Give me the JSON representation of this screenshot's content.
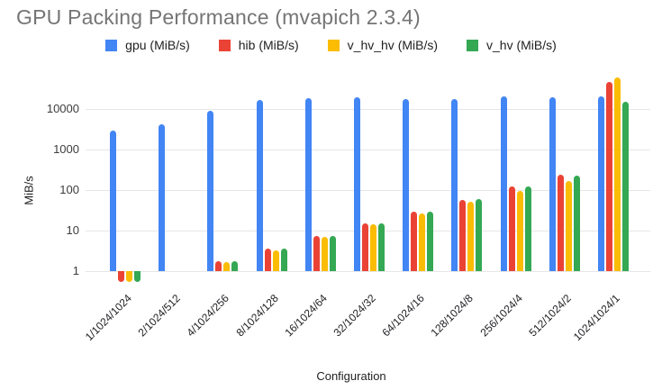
{
  "title": "GPU Packing Performance (mvapich 2.3.4)",
  "axis": {
    "x_title": "Configuration",
    "y_title": "MiB/s"
  },
  "colors": {
    "background": "#ffffff",
    "title_text": "#757575",
    "grid": "#e6e6e6",
    "tick_text": "#3c3c3c",
    "label_text": "#202124",
    "series_blue": "#4285F4",
    "series_red": "#EA4335",
    "series_yellow": "#FBBC04",
    "series_green": "#34A853"
  },
  "chart_data": {
    "type": "bar",
    "title": "GPU Packing Performance (mvapich 2.3.4)",
    "xlabel": "Configuration",
    "ylabel": "MiB/s",
    "y_scale": "log",
    "y_ticks": [
      1,
      10,
      100,
      1000,
      10000
    ],
    "ylim": [
      0.5,
      60000
    ],
    "grid": true,
    "legend_position": "top",
    "categories": [
      "1/1024/1024",
      "2/1024/512",
      "4/1024/256",
      "8/1024/128",
      "16/1024/64",
      "32/1024/32",
      "64/1024/16",
      "128/1024/8",
      "256/1024/4",
      "512/1024/2",
      "1024/1024/1"
    ],
    "series": [
      {
        "name": "gpu (MiB/s)",
        "color": "#4285F4",
        "values": [
          2900,
          4100,
          8800,
          16500,
          18500,
          19000,
          17800,
          17300,
          20400,
          19800,
          20800
        ]
      },
      {
        "name": "hib (MiB/s)",
        "color": "#EA4335",
        "values": [
          0.55,
          null,
          1.8,
          3.6,
          7.3,
          15,
          29,
          58,
          120,
          235,
          47000
        ]
      },
      {
        "name": "v_hv_hv (MiB/s)",
        "color": "#FBBC04",
        "values": [
          0.55,
          null,
          1.7,
          3.3,
          7.1,
          14,
          26,
          51,
          96,
          167,
          60000
        ]
      },
      {
        "name": "v_hv (MiB/s)",
        "color": "#34A853",
        "values": [
          0.55,
          null,
          1.8,
          3.6,
          7.5,
          15,
          29,
          60,
          125,
          230,
          15000
        ]
      }
    ]
  }
}
